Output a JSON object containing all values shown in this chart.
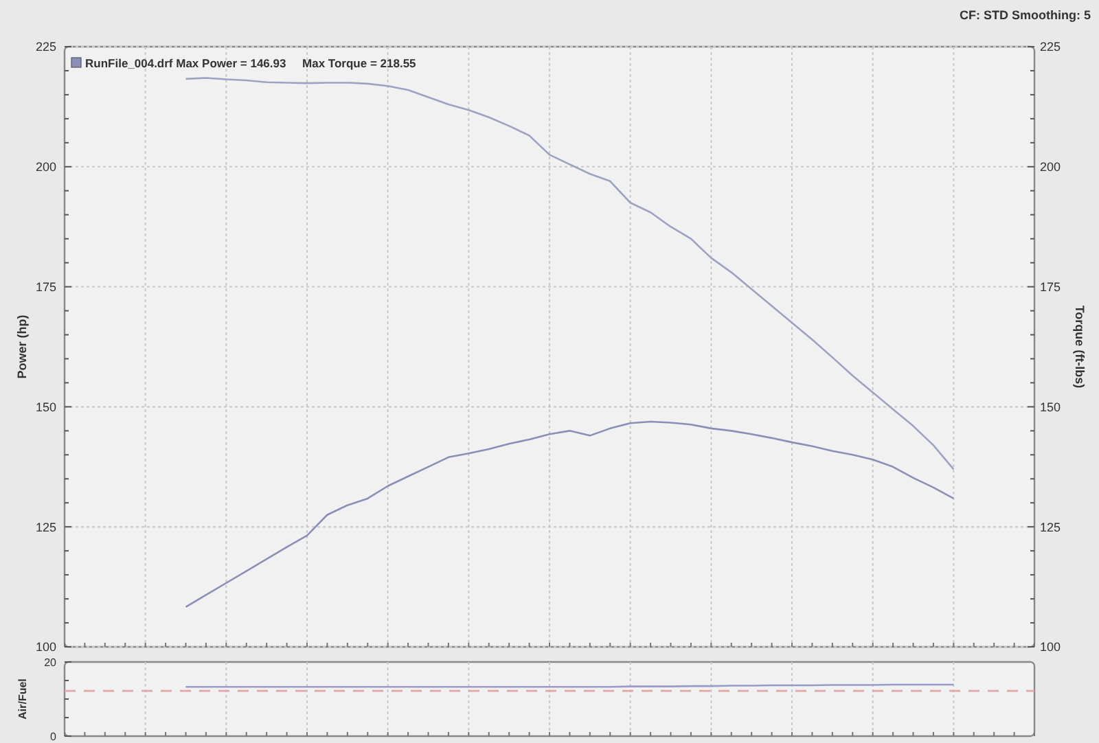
{
  "chart_data": [
    {
      "type": "line",
      "categories": [
        null,
        null,
        null,
        null,
        null,
        null,
        null,
        null,
        null,
        null,
        null,
        null,
        null,
        null,
        null,
        null,
        null,
        null,
        null,
        null,
        null,
        null,
        null,
        null,
        null,
        null,
        null,
        null,
        null,
        null,
        null,
        null,
        null,
        null,
        null,
        null,
        null,
        null,
        null,
        null,
        null,
        null,
        null,
        null,
        null,
        null,
        null,
        null,
        null
      ],
      "ylabel": "Power (hp)",
      "y2label": "Torque (ft-lbs)",
      "annotations": [
        "CF: STD  Smoothing: 5",
        "RunFile_004.drf Max Power = 146.93     Max Torque = 218.55"
      ],
      "series": [
        {
          "color": "#8a8fb8",
          "values": [
            null,
            null,
            null,
            null,
            null,
            null,
            108.3,
            110.8,
            113.3,
            115.8,
            118.3,
            120.8,
            123.2,
            127.5,
            129.5,
            130.9,
            133.5,
            135.5,
            137.5,
            139.5,
            140.3,
            141.2,
            142.3,
            143.2,
            144.3,
            145,
            144,
            145.5,
            146.6,
            146.9,
            146.7,
            146.3,
            145.5,
            145,
            144.3,
            143.5,
            142.6,
            141.8,
            140.8,
            140,
            139,
            137.5,
            135.2,
            133.2,
            130.9,
            null,
            null,
            null,
            null
          ]
        },
        {
          "color": "#9da2c4",
          "values": [
            null,
            null,
            null,
            null,
            null,
            null,
            218.3,
            218.5,
            218.2,
            218,
            217.6,
            217.5,
            217.4,
            217.5,
            217.5,
            217.3,
            216.8,
            216,
            214.5,
            213,
            211.8,
            210.3,
            208.5,
            206.5,
            202.5,
            200.5,
            198.5,
            197,
            192.5,
            190.5,
            187.5,
            185,
            181,
            178,
            174.5,
            171,
            167.5,
            164,
            160.3,
            156.5,
            153,
            149.5,
            146,
            142,
            137,
            null,
            null,
            null,
            null
          ]
        }
      ],
      "ylim": [
        100,
        225
      ],
      "yticks": [
        100,
        {
          "value": 105,
          "label": null
        },
        {
          "value": 110,
          "label": null
        },
        {
          "value": 115,
          "label": null
        },
        {
          "value": 120,
          "label": null
        },
        125,
        {
          "value": 130,
          "label": null
        },
        {
          "value": 135,
          "label": null
        },
        {
          "value": 140,
          "label": null
        },
        {
          "value": 145,
          "label": null
        },
        150,
        {
          "value": 155,
          "label": null
        },
        {
          "value": 160,
          "label": null
        },
        {
          "value": 165,
          "label": null
        },
        {
          "value": 170,
          "label": null
        },
        175,
        {
          "value": 180,
          "label": null
        },
        {
          "value": 185,
          "label": null
        },
        {
          "value": 190,
          "label": null
        },
        {
          "value": 195,
          "label": null
        },
        200,
        {
          "value": 205,
          "label": null
        },
        {
          "value": 210,
          "label": null
        },
        {
          "value": 215,
          "label": null
        },
        {
          "value": 220,
          "label": null
        },
        225
      ],
      "y2lim": [
        100,
        225
      ],
      "y2ticks": [
        100,
        {
          "value": 105,
          "label": null
        },
        {
          "value": 110,
          "label": null
        },
        {
          "value": 115,
          "label": null
        },
        {
          "value": 120,
          "label": null
        },
        125,
        {
          "value": 130,
          "label": null
        },
        {
          "value": 135,
          "label": null
        },
        {
          "value": 140,
          "label": null
        },
        {
          "value": 145,
          "label": null
        },
        150,
        {
          "value": 155,
          "label": null
        },
        {
          "value": 160,
          "label": null
        },
        {
          "value": 165,
          "label": null
        },
        {
          "value": 170,
          "label": null
        },
        175,
        {
          "value": 180,
          "label": null
        },
        {
          "value": 185,
          "label": null
        },
        {
          "value": 190,
          "label": null
        },
        {
          "value": 195,
          "label": null
        },
        200,
        {
          "value": 205,
          "label": null
        },
        {
          "value": 210,
          "label": null
        },
        {
          "value": 215,
          "label": null
        },
        {
          "value": 220,
          "label": null
        },
        225
      ],
      "grid": true,
      "tick_labels": "y"
    },
    {
      "type": "line",
      "categories": [
        null,
        null,
        null,
        null,
        null,
        null,
        null,
        null,
        null,
        null,
        null,
        null,
        null,
        null,
        null,
        null,
        null,
        null,
        null,
        null,
        null,
        null,
        null,
        null,
        null,
        null,
        null,
        null,
        null,
        null,
        null,
        null,
        null,
        null,
        null,
        null,
        null,
        null,
        null,
        null,
        null,
        null,
        null,
        null,
        null,
        null,
        null,
        null,
        null
      ],
      "ylabel": "Air/Fuel",
      "series": [
        {
          "color": "#9a9ac8",
          "values": [
            null,
            null,
            null,
            null,
            null,
            null,
            13.3,
            13.3,
            13.3,
            13.3,
            13.3,
            13.3,
            13.3,
            13.3,
            13.3,
            13.3,
            13.3,
            13.3,
            13.3,
            13.3,
            13.3,
            13.3,
            13.3,
            13.3,
            13.3,
            13.3,
            13.3,
            13.3,
            13.4,
            13.4,
            13.4,
            13.5,
            13.5,
            13.6,
            13.6,
            13.7,
            13.7,
            13.7,
            13.8,
            13.8,
            13.8,
            13.9,
            13.9,
            13.9,
            13.9,
            null,
            null,
            null,
            null
          ]
        }
      ],
      "ylim": [
        0,
        20
      ],
      "yticks": [
        0,
        {
          "value": 5,
          "label": null
        },
        {
          "value": 10,
          "label": null
        },
        {
          "value": 15,
          "label": null
        },
        20
      ],
      "ref_lines": [
        {
          "axis": "y",
          "value": 12.2,
          "color": "#e0a8a8",
          "line_style": "dashed"
        }
      ],
      "grid": "x",
      "tick_labels": "y"
    }
  ]
}
